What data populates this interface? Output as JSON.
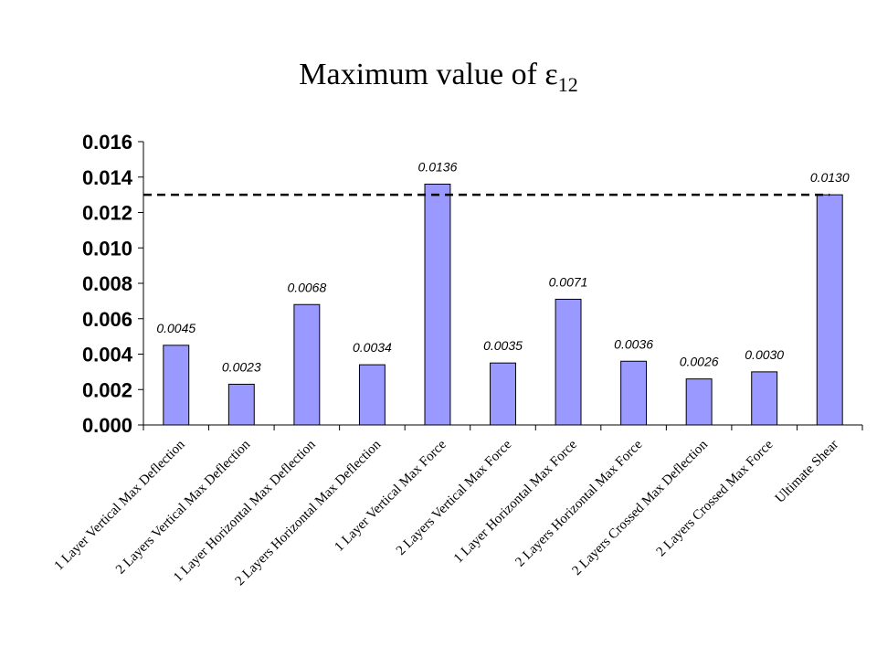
{
  "chart_data": {
    "type": "bar",
    "title": "Maximum value of ε",
    "title_subscript": "12",
    "xlabel": "",
    "ylabel": "",
    "ylim": [
      0,
      0.016
    ],
    "yticks": [
      "0.000",
      "0.002",
      "0.004",
      "0.006",
      "0.008",
      "0.010",
      "0.012",
      "0.014",
      "0.016"
    ],
    "ytick_values": [
      0,
      0.002,
      0.004,
      0.006,
      0.008,
      0.01,
      0.012,
      0.014,
      0.016
    ],
    "categories": [
      "1 Layer Vertical Max Deflection",
      "2 Layers Vertical Max Deflection",
      "1 Layer Horizontal Max Deflection",
      "2 Layers Horizontal Max Deflection",
      "1 Layer Vertical Max Force",
      "2 Layers Vertical Max Force",
      "1 Layer Horizontal Max Force",
      "2 Layers Horizontal Max Force",
      "2 Layers Crossed Max Deflection",
      "2 Layers Crossed Max Force",
      "Ultimate Shear"
    ],
    "values": [
      0.0045,
      0.0023,
      0.0068,
      0.0034,
      0.0136,
      0.0035,
      0.0071,
      0.0036,
      0.0026,
      0.003,
      0.013
    ],
    "data_labels": [
      "0.0045",
      "0.0023",
      "0.0068",
      "0.0034",
      "0.0136",
      "0.0035",
      "0.0071",
      "0.0036",
      "0.0026",
      "0.0030",
      "0.0130"
    ],
    "reference_line": 0.013,
    "grid": false,
    "legend": "none",
    "bar_color": "#9999ff"
  }
}
